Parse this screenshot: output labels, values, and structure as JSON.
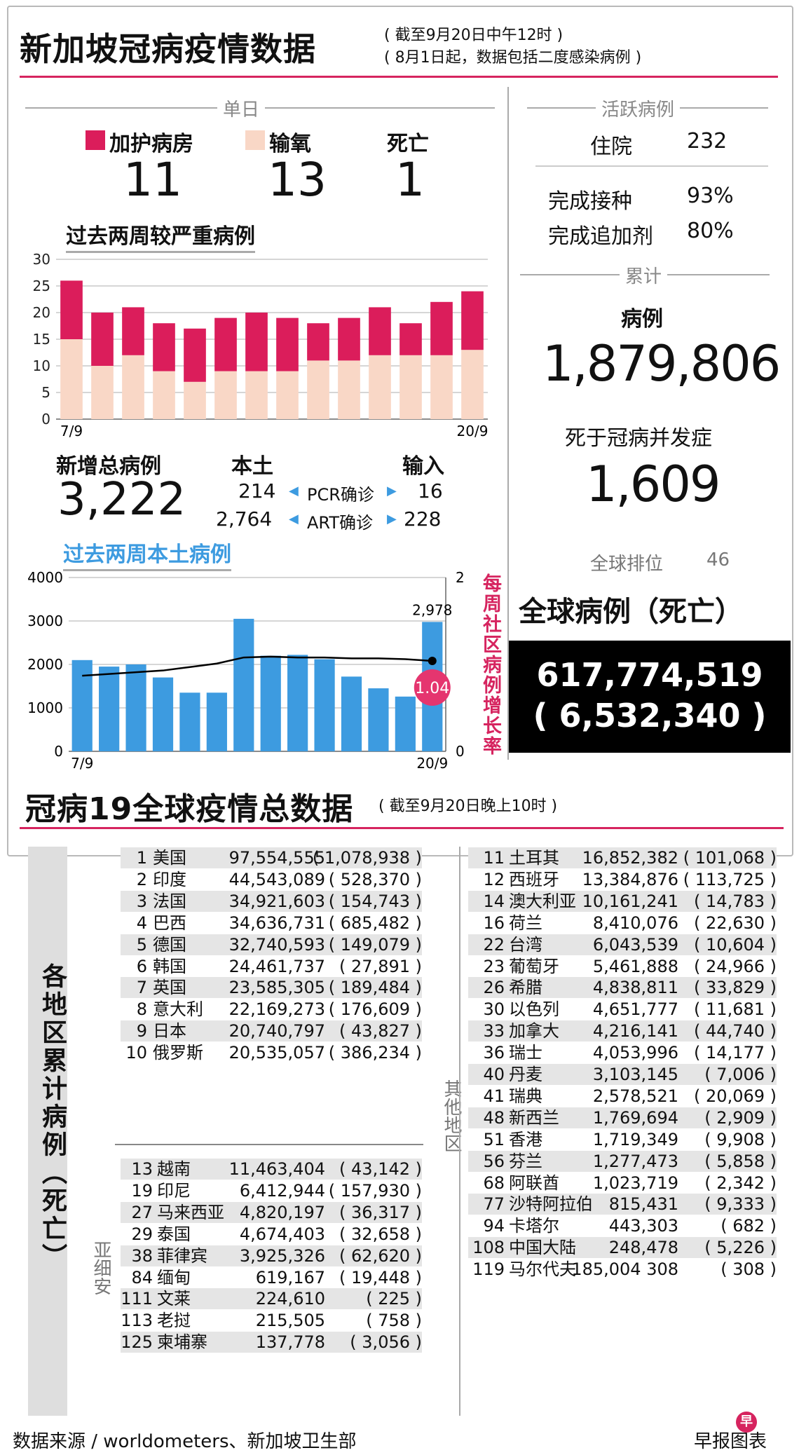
{
  "header": {
    "title": "新加坡冠病疫情数据",
    "note1": "( 截至9月20日中午12时 )",
    "note2": "( 8月1日起，数据包括二度感染病例 )"
  },
  "daily": {
    "heading": "单日",
    "icu_label": "加护病房",
    "icu_value": "11",
    "oxygen_label": "输氧",
    "oxygen_value": "13",
    "death_label": "死亡",
    "death_value": "1",
    "colors": {
      "icu": "#db1d5b",
      "oxygen": "#f9d7c6"
    }
  },
  "active": {
    "heading": "活跃病例",
    "hosp_label": "住院",
    "hosp_value": "232",
    "vacc_label": "完成接种",
    "vacc_value": "93%",
    "booster_label": "完成追加剂",
    "booster_value": "80%"
  },
  "cumulative": {
    "heading": "累计",
    "cases_label": "病例",
    "cases_value": "1,879,806",
    "deaths_label": "死于冠病并发症",
    "deaths_value": "1,609",
    "rank_label": "全球排位",
    "rank_value": "46"
  },
  "global_box": {
    "label": "全球病例（死亡）",
    "cases": "617,774,519",
    "deaths": "( 6,532,340 )"
  },
  "new_cases": {
    "label": "新增总病例",
    "total": "3,222",
    "local_label": "本土",
    "import_label": "输入",
    "pcr_label": "PCR确诊",
    "pcr_local": "214",
    "pcr_import": "16",
    "art_label": "ART确诊",
    "art_local": "2,764",
    "art_import": "228"
  },
  "chart_data": [
    {
      "type": "bar",
      "stacked": true,
      "title": "过去两周较严重病例",
      "categories": [
        "7/9",
        "8/9",
        "9/9",
        "10/9",
        "11/9",
        "12/9",
        "13/9",
        "14/9",
        "15/9",
        "16/9",
        "17/9",
        "18/9",
        "19/9",
        "20/9"
      ],
      "x_tick_labels": [
        "7/9",
        "20/9"
      ],
      "series": [
        {
          "name": "输氧",
          "color": "#f9d7c6",
          "values": [
            15,
            10,
            12,
            9,
            7,
            9,
            9,
            9,
            11,
            11,
            12,
            12,
            12,
            13
          ]
        },
        {
          "name": "加护病房",
          "color": "#db1d5b",
          "values": [
            11,
            10,
            9,
            9,
            10,
            10,
            11,
            10,
            7,
            8,
            9,
            6,
            10,
            11
          ]
        }
      ],
      "ylim": [
        0,
        30
      ],
      "yticks": [
        0,
        5,
        10,
        15,
        20,
        25,
        30
      ]
    },
    {
      "type": "bar",
      "title": "过去两周本土病例",
      "categories": [
        "7/9",
        "8/9",
        "9/9",
        "10/9",
        "11/9",
        "12/9",
        "13/9",
        "14/9",
        "15/9",
        "16/9",
        "17/9",
        "18/9",
        "19/9",
        "20/9"
      ],
      "x_tick_labels": [
        "7/9",
        "20/9"
      ],
      "series": [
        {
          "name": "本土病例",
          "color": "#3d9be0",
          "values": [
            2100,
            1950,
            2000,
            1700,
            1350,
            1350,
            3050,
            2200,
            2220,
            2120,
            1720,
            1450,
            1260,
            2978
          ]
        },
        {
          "name": "每周社区病例增长率",
          "type": "line",
          "color": "#000000",
          "axis": "right",
          "values": [
            0.87,
            0.89,
            0.91,
            0.93,
            0.97,
            1.01,
            1.08,
            1.09,
            1.08,
            1.08,
            1.07,
            1.07,
            1.06,
            1.04
          ]
        }
      ],
      "ylim": [
        0,
        4000
      ],
      "yticks": [
        0,
        1000,
        2000,
        3000,
        4000
      ],
      "y2lim": [
        0,
        2
      ],
      "y2ticks": [
        0,
        2
      ],
      "y2label": "每周社区病例增长率",
      "annotations": {
        "last_bar": "2,978",
        "last_rate": "1.04"
      }
    },
    {
      "type": "table",
      "title": "冠病19全球疫情总数据",
      "note": "( 截至9月20日晚上10时 )",
      "side_label": "各地区累计病例（死亡）",
      "asia_label": "亚细安",
      "other_label": "其他地区",
      "top10": [
        {
          "rank": "1",
          "name": "美国",
          "cases": "97,554,555",
          "deaths": "( 1,078,938 )"
        },
        {
          "rank": "2",
          "name": "印度",
          "cases": "44,543,089",
          "deaths": "( 528,370 )"
        },
        {
          "rank": "3",
          "name": "法国",
          "cases": "34,921,603",
          "deaths": "( 154,743 )"
        },
        {
          "rank": "4",
          "name": "巴西",
          "cases": "34,636,731",
          "deaths": "( 685,482 )"
        },
        {
          "rank": "5",
          "name": "德国",
          "cases": "32,740,593",
          "deaths": "( 149,079 )"
        },
        {
          "rank": "6",
          "name": "韩国",
          "cases": "24,461,737",
          "deaths": "( 27,891 )"
        },
        {
          "rank": "7",
          "name": "英国",
          "cases": "23,585,305",
          "deaths": "( 189,484 )"
        },
        {
          "rank": "8",
          "name": "意大利",
          "cases": "22,169,273",
          "deaths": "( 176,609 )"
        },
        {
          "rank": "9",
          "name": "日本",
          "cases": "20,740,797",
          "deaths": "( 43,827 )"
        },
        {
          "rank": "10",
          "name": "俄罗斯",
          "cases": "20,535,057",
          "deaths": "( 386,234 )"
        }
      ],
      "asean": [
        {
          "rank": "13",
          "name": "越南",
          "cases": "11,463,404",
          "deaths": "( 43,142 )"
        },
        {
          "rank": "19",
          "name": "印尼",
          "cases": "6,412,944",
          "deaths": "( 157,930 )"
        },
        {
          "rank": "27",
          "name": "马来西亚",
          "cases": "4,820,197",
          "deaths": "( 36,317 )"
        },
        {
          "rank": "29",
          "name": "泰国",
          "cases": "4,674,403",
          "deaths": "( 32,658 )"
        },
        {
          "rank": "38",
          "name": "菲律宾",
          "cases": "3,925,326",
          "deaths": "( 62,620 )"
        },
        {
          "rank": "84",
          "name": "缅甸",
          "cases": "619,167",
          "deaths": "( 19,448 )"
        },
        {
          "rank": "111",
          "name": "文莱",
          "cases": "224,610",
          "deaths": "( 225 )"
        },
        {
          "rank": "113",
          "name": "老挝",
          "cases": "215,505",
          "deaths": "( 758 )"
        },
        {
          "rank": "125",
          "name": "柬埔寨",
          "cases": "137,778",
          "deaths": "( 3,056 )"
        }
      ],
      "others": [
        {
          "rank": "11",
          "name": "土耳其",
          "cases": "16,852,382",
          "deaths": "( 101,068 )"
        },
        {
          "rank": "12",
          "name": "西班牙",
          "cases": "13,384,876",
          "deaths": "( 113,725 )"
        },
        {
          "rank": "14",
          "name": "澳大利亚",
          "cases": "10,161,241",
          "deaths": "( 14,783 )"
        },
        {
          "rank": "16",
          "name": "荷兰",
          "cases": "8,410,076",
          "deaths": "( 22,630 )"
        },
        {
          "rank": "22",
          "name": "台湾",
          "cases": "6,043,539",
          "deaths": "( 10,604 )"
        },
        {
          "rank": "23",
          "name": "葡萄牙",
          "cases": "5,461,888",
          "deaths": "( 24,966 )"
        },
        {
          "rank": "26",
          "name": "希腊",
          "cases": "4,838,811",
          "deaths": "( 33,829 )"
        },
        {
          "rank": "30",
          "name": "以色列",
          "cases": "4,651,777",
          "deaths": "( 11,681 )"
        },
        {
          "rank": "33",
          "name": "加拿大",
          "cases": "4,216,141",
          "deaths": "( 44,740 )"
        },
        {
          "rank": "36",
          "name": "瑞士",
          "cases": "4,053,996",
          "deaths": "( 14,177 )"
        },
        {
          "rank": "40",
          "name": "丹麦",
          "cases": "3,103,145",
          "deaths": "( 7,006 )"
        },
        {
          "rank": "41",
          "name": "瑞典",
          "cases": "2,578,521",
          "deaths": "( 20,069 )"
        },
        {
          "rank": "48",
          "name": "新西兰",
          "cases": "1,769,694",
          "deaths": "( 2,909 )"
        },
        {
          "rank": "51",
          "name": "香港",
          "cases": "1,719,349",
          "deaths": "( 9,908 )"
        },
        {
          "rank": "56",
          "name": "芬兰",
          "cases": "1,277,473",
          "deaths": "( 5,858 )"
        },
        {
          "rank": "68",
          "name": "阿联酋",
          "cases": "1,023,719",
          "deaths": "( 2,342 )"
        },
        {
          "rank": "77",
          "name": "沙特阿拉伯",
          "cases": "815,431",
          "deaths": "( 9,333 )"
        },
        {
          "rank": "94",
          "name": "卡塔尔",
          "cases": "443,303",
          "deaths": "( 682 )"
        },
        {
          "rank": "108",
          "name": "中国大陆",
          "cases": "248,478",
          "deaths": "( 5,226 )"
        },
        {
          "rank": "119",
          "name": "马尔代夫",
          "cases": "185,004 308",
          "deaths": "( 308 )"
        }
      ]
    }
  ],
  "footer": {
    "source": "数据来源 / worldometers、新加坡卫生部",
    "credit": "早报图表",
    "logo_glyph": "早"
  }
}
